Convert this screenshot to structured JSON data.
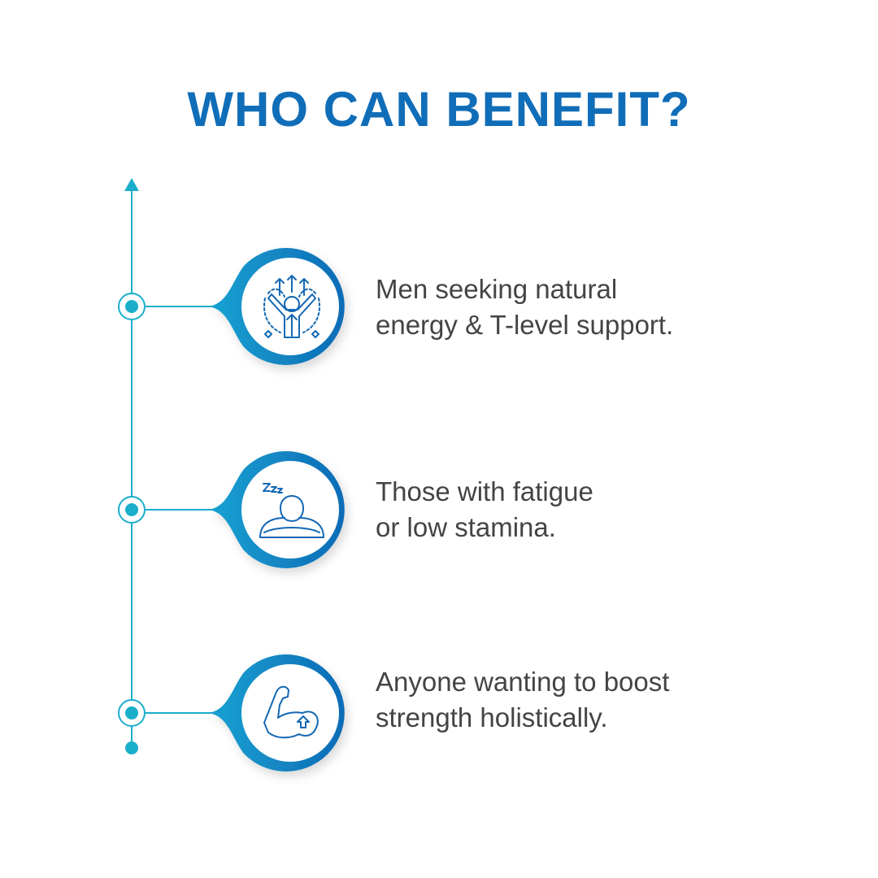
{
  "title": "WHO CAN BENEFIT?",
  "colors": {
    "title": "#106db8",
    "timeline": "#1aaecb",
    "ring_start": "#1aa3d2",
    "ring_end": "#0d6bb6",
    "text": "#444444"
  },
  "items": [
    {
      "icon": "person-energy-icon",
      "line1": "Men seeking natural",
      "line2": "energy & T-level support."
    },
    {
      "icon": "sleepy-person-icon",
      "line1": "Those with fatigue",
      "line2": "or low stamina."
    },
    {
      "icon": "flexed-arm-icon",
      "line1": "Anyone wanting to boost",
      "line2": "strength holistically."
    }
  ]
}
